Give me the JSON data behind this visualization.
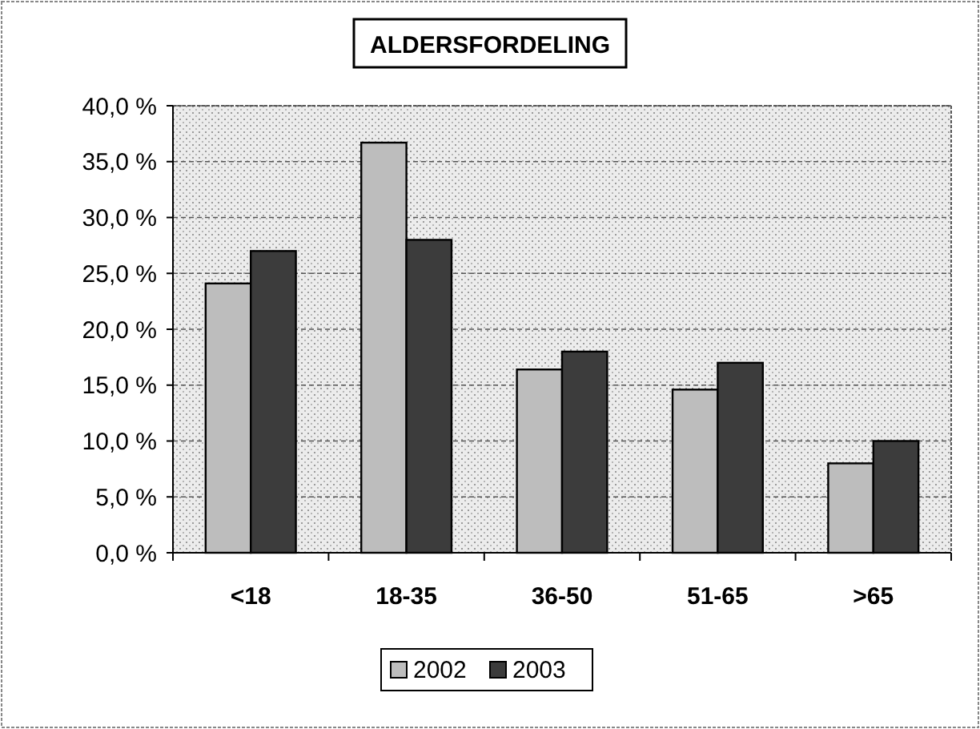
{
  "chart_data": {
    "type": "bar",
    "title": "ALDERSFORDELING",
    "categories": [
      "<18",
      "18-35",
      "36-50",
      "51-65",
      ">65"
    ],
    "series": [
      {
        "name": "2002",
        "color": "#bdbdbd",
        "values": [
          24.1,
          36.7,
          16.4,
          14.6,
          8.0
        ]
      },
      {
        "name": "2003",
        "color": "#3c3c3c",
        "values": [
          27.0,
          28.0,
          18.0,
          17.0,
          10.0
        ]
      }
    ],
    "ylim": [
      0,
      40
    ],
    "yticks": [
      {
        "value": 0,
        "label": "0,0 %"
      },
      {
        "value": 5,
        "label": "5,0 %"
      },
      {
        "value": 10,
        "label": "10,0 %"
      },
      {
        "value": 15,
        "label": "15,0 %"
      },
      {
        "value": 20,
        "label": "20,0 %"
      },
      {
        "value": 25,
        "label": "25,0 %"
      },
      {
        "value": 30,
        "label": "30,0 %"
      },
      {
        "value": 35,
        "label": "35,0 %"
      },
      {
        "value": 40,
        "label": "40,0 %"
      }
    ],
    "grid": "y",
    "legend": "bottom"
  }
}
